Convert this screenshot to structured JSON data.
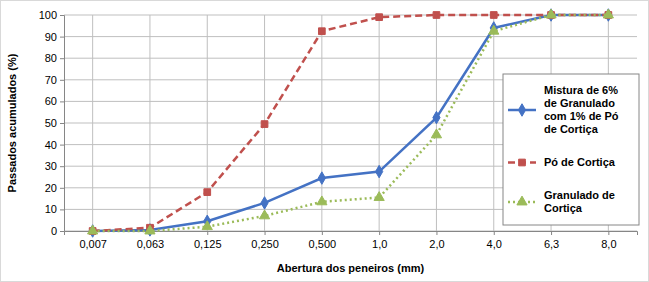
{
  "chart_data": {
    "type": "line",
    "x_label": "Abertura dos peneiros (mm)",
    "y_label": "Passados acumulados (%)",
    "categories": [
      "0,007",
      "0,063",
      "0,125",
      "0,250",
      "0,500",
      "1,0",
      "2,0",
      "4,0",
      "6,3",
      "8,0"
    ],
    "series": [
      {
        "name": "Mistura de 6% de Granulado com 1% de Pó de Cortiça",
        "color": "#4472c4",
        "marker": "diamond",
        "line_style": "solid",
        "values": [
          0,
          0.5,
          4.5,
          13,
          24.5,
          27.5,
          52.5,
          94,
          100,
          100
        ]
      },
      {
        "name": "Pó de Cortiça",
        "color": "#c0504d",
        "marker": "square",
        "line_style": "dashed",
        "values": [
          0,
          1.5,
          18,
          49.5,
          92.5,
          99,
          100,
          100,
          100,
          100
        ]
      },
      {
        "name": "Granulado de Cortiça",
        "color": "#9bbb59",
        "marker": "triangle",
        "line_style": "dotted",
        "values": [
          0,
          0,
          2,
          7,
          13.5,
          15.5,
          44.5,
          92.5,
          100,
          100
        ]
      }
    ],
    "ylim": [
      0,
      100
    ],
    "yticks": [
      0,
      10,
      20,
      30,
      40,
      50,
      60,
      70,
      80,
      90,
      100
    ],
    "grid": true,
    "legend": "right"
  }
}
